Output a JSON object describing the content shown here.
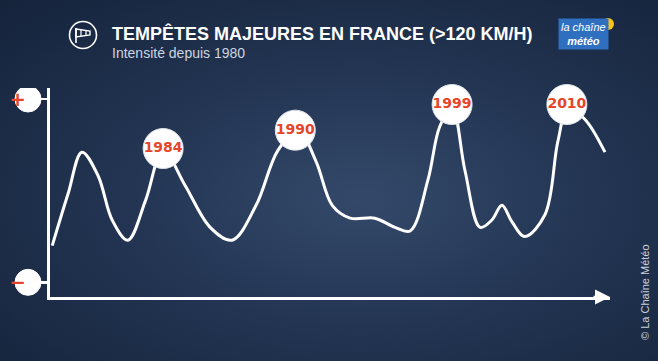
{
  "chart_data": {
    "type": "line",
    "title": "TEMPÊTES MAJEURES EN FRANCE (>120 KM/H)",
    "subtitle": "Intensité depuis 1980",
    "x": [
      0.4,
      3.2,
      5.7,
      8.6,
      11.1,
      13.9,
      17.1,
      20.2,
      24.1,
      28.6,
      32.5,
      36.8,
      40.7,
      44.3,
      47.5,
      50.4,
      53.6,
      58.0,
      61.6,
      64.3,
      67.5,
      69.6,
      71.8,
      74.1,
      76.8,
      78.9,
      80.7,
      82.5,
      84.8,
      88.4,
      90.7,
      92.5,
      95.5,
      99.1
    ],
    "values": [
      2.0,
      4.8,
      7.1,
      5.8,
      3.4,
      2.3,
      4.5,
      7.2,
      5.3,
      3.0,
      2.3,
      4.2,
      7.2,
      8.3,
      6.6,
      4.2,
      3.5,
      3.5,
      3.0,
      2.8,
      5.6,
      8.5,
      9.5,
      6.1,
      3.0,
      3.4,
      4.2,
      3.3,
      2.5,
      3.7,
      7.7,
      9.5,
      8.9,
      7.1
    ],
    "color": "#ffffff",
    "line_style": "spline",
    "xlim": [
      0,
      100
    ],
    "ylim": [
      -0.8,
      10.6
    ],
    "xticks": [],
    "yticks": [
      {
        "value": 10,
        "label": "+"
      },
      {
        "value": 0,
        "label": "−"
      }
    ],
    "tick_labels": "y",
    "grid": false,
    "annotations": [
      {
        "x": 20.2,
        "y": 7.3,
        "text": "1984"
      },
      {
        "x": 43.8,
        "y": 8.3,
        "text": "1990"
      },
      {
        "x": 71.8,
        "y": 9.7,
        "text": "1999"
      },
      {
        "x": 92.3,
        "y": 9.7,
        "text": "2010"
      }
    ],
    "logo": [
      "la chaîne",
      "météo"
    ],
    "credit": "© La Chaîne Météo"
  }
}
